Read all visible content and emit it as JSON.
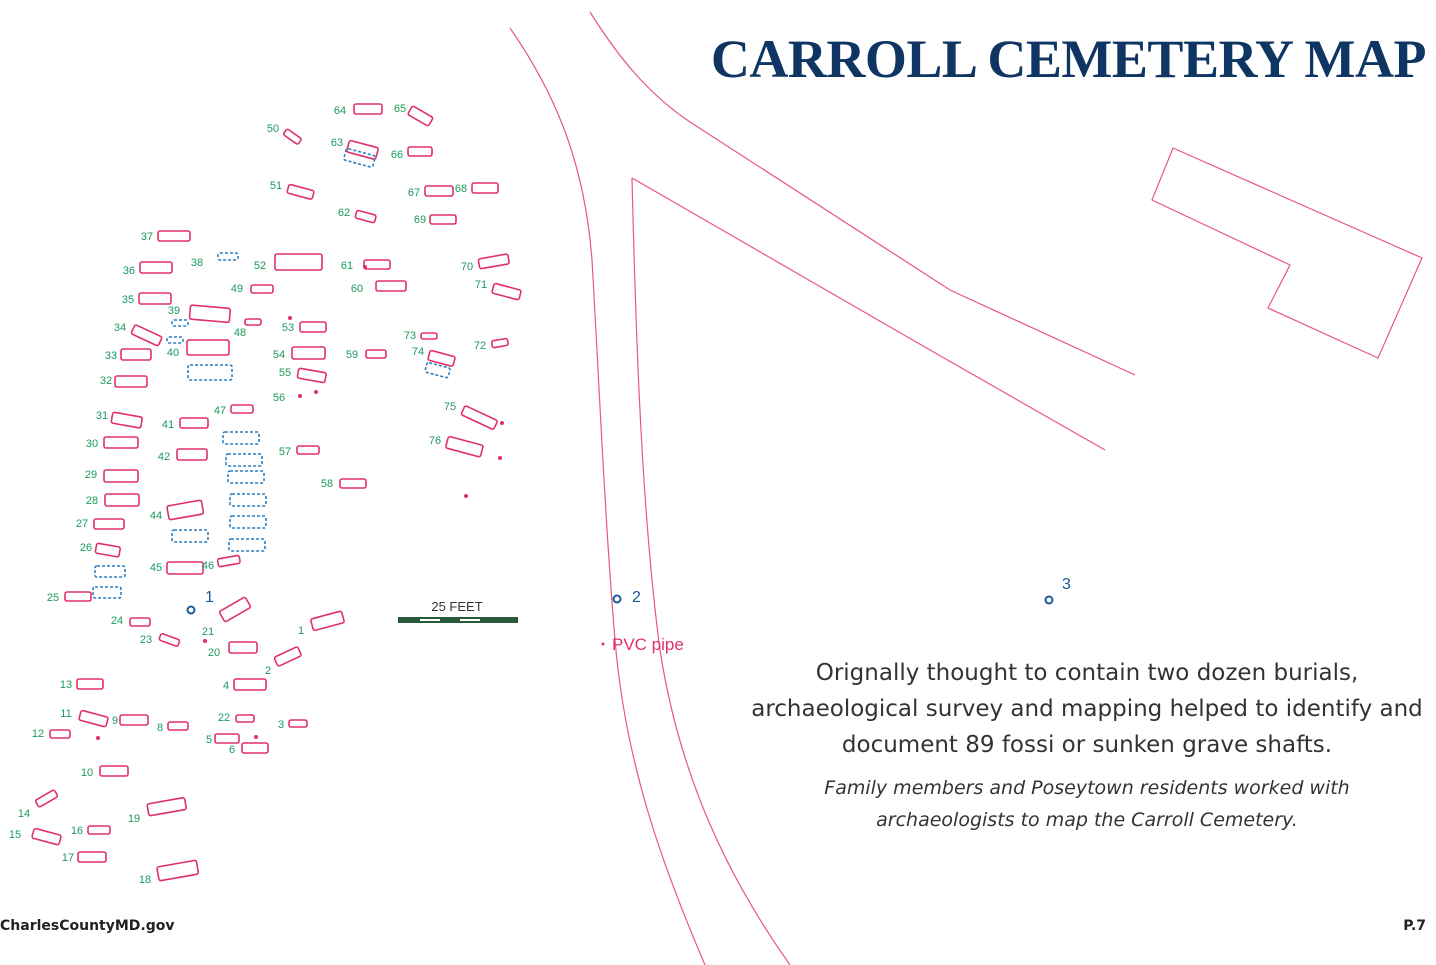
{
  "title": "CARROLL CEMETERY MAP",
  "map": {
    "graves": [
      "64",
      "65",
      "50",
      "63",
      "66",
      "51",
      "67",
      "68",
      "62",
      "69",
      "37",
      "38",
      "52",
      "61",
      "70",
      "36",
      "49",
      "60",
      "71",
      "35",
      "39",
      "34",
      "48",
      "53",
      "73",
      "72",
      "33",
      "40",
      "54",
      "59",
      "74",
      "55",
      "32",
      "56",
      "75",
      "47",
      "31",
      "41",
      "76",
      "30",
      "57",
      "42",
      "29",
      "58",
      "28",
      "44",
      "27",
      "26",
      "45",
      "46",
      "25",
      "24",
      "1",
      "23",
      "21",
      "20",
      "2",
      "13",
      "4",
      "11",
      "9",
      "8",
      "22",
      "3",
      "12",
      "5",
      "6",
      "10",
      "14",
      "19",
      "15",
      "16",
      "17",
      "18"
    ],
    "markers": [
      "1",
      "2",
      "3"
    ],
    "scale_label": "25 FEET",
    "pvc_label": "PVC pipe"
  },
  "description": "Orignally thought to contain two dozen burials, archaeological survey and mapping helped to identify and document 89 fossi or sunken grave shafts.",
  "caption": "Family members and Poseytown residents worked with archaeologists to map the Carroll Cemetery.",
  "footer": {
    "website": "CharlesCountyMD.gov",
    "page": "P.7"
  }
}
